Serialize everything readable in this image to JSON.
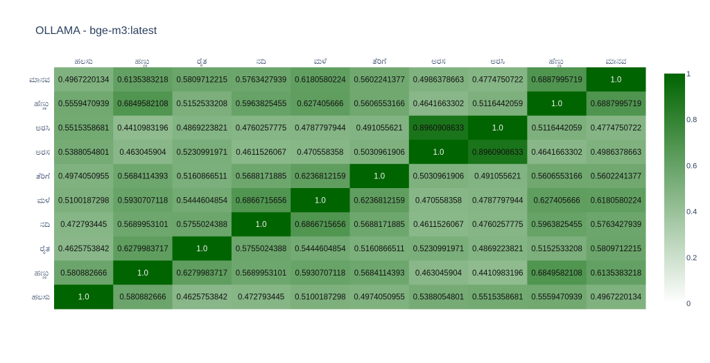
{
  "chart_data": {
    "type": "heatmap",
    "title": "OLLAMA - bge-m3:latest",
    "x": [
      "ಹಲಸು",
      "ಹಣ್ಣು",
      "ರೈತ",
      "ನದಿ",
      "ಮಳೆ",
      "ತೆರಿಗೆ",
      "ಅರಸ",
      "ಅರಸಿ",
      "ಹೆಣ್ಣು",
      "ಮಾನವ"
    ],
    "y_top_to_bottom": [
      "ಮಾನವ",
      "ಹೆಣ್ಣು",
      "ಅರಸಿ",
      "ಅರಸ",
      "ತೆರಿಗೆ",
      "ಮಳೆ",
      "ನದಿ",
      "ರೈತ",
      "ಹಣ್ಣು",
      "ಹಲಸು"
    ],
    "z": [
      [
        "0.4967220134",
        "0.6135383218",
        "0.5809712215",
        "0.5763427939",
        "0.6180580224",
        "0.5602241377",
        "0.4986378663",
        "0.4774750722",
        "0.6887995719",
        "1.0"
      ],
      [
        "0.5559470939",
        "0.6849582108",
        "0.5152533208",
        "0.5963825455",
        "0.627405666",
        "0.5606553166",
        "0.4641663302",
        "0.5116442059",
        "1.0",
        "0.6887995719"
      ],
      [
        "0.5515358681",
        "0.4410983196",
        "0.4869223821",
        "0.4760257775",
        "0.4787797944",
        "0.491055621",
        "0.8960908633",
        "1.0",
        "0.5116442059",
        "0.4774750722"
      ],
      [
        "0.5388054801",
        "0.463045904",
        "0.5230991971",
        "0.4611526067",
        "0.470558358",
        "0.5030961906",
        "1.0",
        "0.8960908633",
        "0.4641663302",
        "0.4986378663"
      ],
      [
        "0.4974050955",
        "0.5684114393",
        "0.5160866511",
        "0.5688171885",
        "0.6236812159",
        "1.0",
        "0.5030961906",
        "0.491055621",
        "0.5606553166",
        "0.5602241377"
      ],
      [
        "0.5100187298",
        "0.5930707118",
        "0.5444604854",
        "0.6866715656",
        "1.0",
        "0.6236812159",
        "0.470558358",
        "0.4787797944",
        "0.627405666",
        "0.6180580224"
      ],
      [
        "0.472793445",
        "0.5689953101",
        "0.5755024388",
        "1.0",
        "0.6866715656",
        "0.5688171885",
        "0.4611526067",
        "0.4760257775",
        "0.5963825455",
        "0.5763427939"
      ],
      [
        "0.4625753842",
        "0.6279983717",
        "1.0",
        "0.5755024388",
        "0.5444604854",
        "0.5160866511",
        "0.5230991971",
        "0.4869223821",
        "0.5152533208",
        "0.5809712215"
      ],
      [
        "0.580882666",
        "1.0",
        "0.6279983717",
        "0.5689953101",
        "0.5930707118",
        "0.5684114393",
        "0.463045904",
        "0.4410983196",
        "0.6849582108",
        "0.6135383218"
      ],
      [
        "1.0",
        "0.580882666",
        "0.4625753842",
        "0.472793445",
        "0.5100187298",
        "0.4974050955",
        "0.5388054801",
        "0.5515358681",
        "0.5559470939",
        "0.4967220134"
      ]
    ],
    "zmin": 0,
    "zmax": 1,
    "colorscale": [
      "#ffffff",
      "#006400"
    ],
    "colorbar": {
      "ticks": [
        "0",
        "0.2",
        "0.4",
        "0.6",
        "0.8",
        "1"
      ]
    },
    "x_axis_position": "top"
  }
}
